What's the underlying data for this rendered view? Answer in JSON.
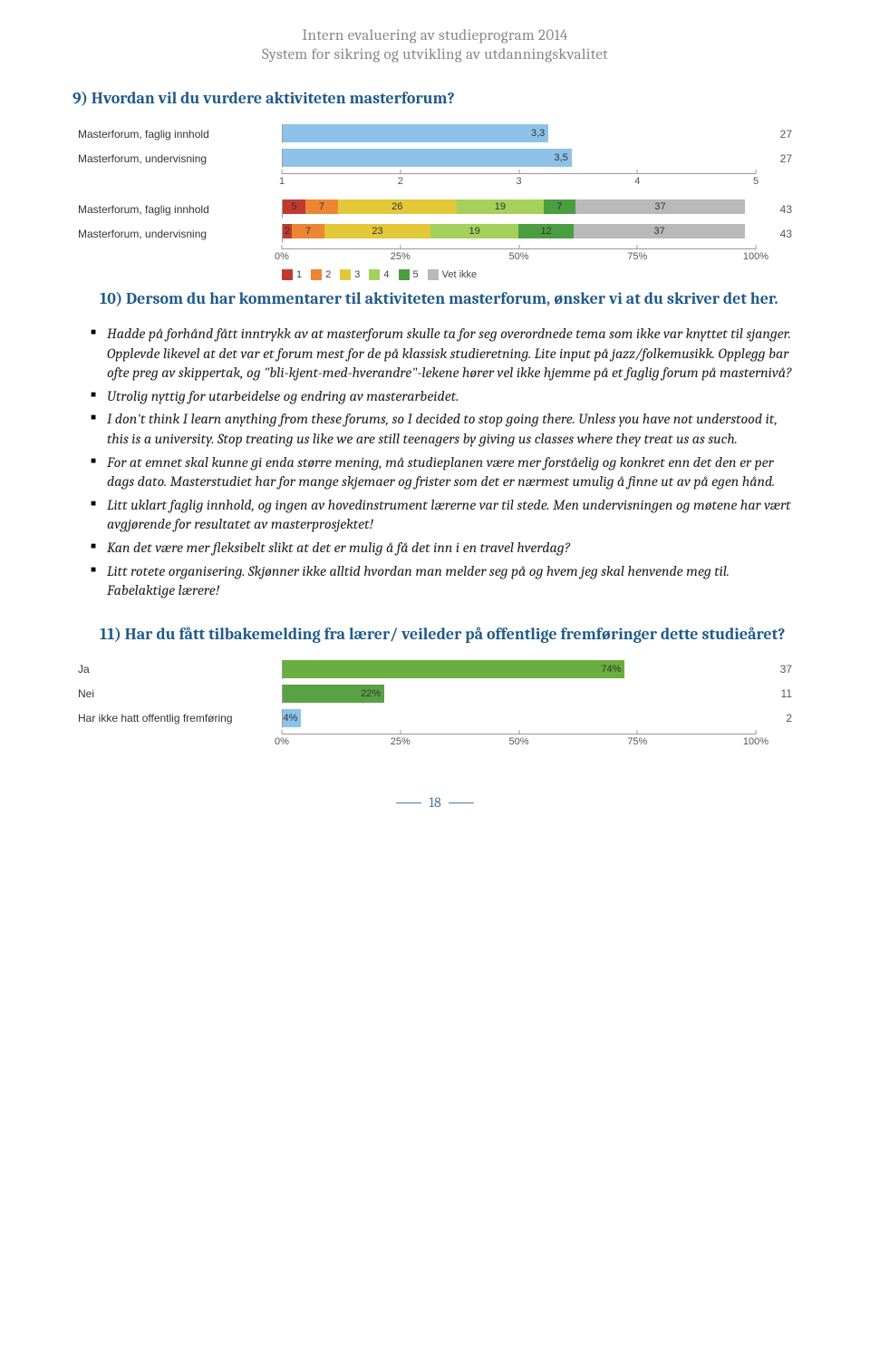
{
  "header": {
    "line1": "Intern evaluering av studieprogram 2014",
    "line2": "System for sikring og utvikling av utdanningskvalitet"
  },
  "q9": {
    "heading": "9)  Hvordan vil du vurdere aktiviteten masterforum?",
    "avg_chart": {
      "type": "bar",
      "x_min": 1,
      "x_max": 5,
      "bar_color": "#8ec2e8",
      "axis_color": "#999999",
      "label_font_size": 12,
      "rows": [
        {
          "label": "Masterforum, faglig innhold",
          "value": 3.3,
          "text": "3,3",
          "n": 27
        },
        {
          "label": "Masterforum, undervisning",
          "value": 3.5,
          "text": "3,5",
          "n": 27
        }
      ],
      "ticks": [
        "1",
        "2",
        "3",
        "4",
        "5"
      ]
    },
    "stacked_chart": {
      "type": "stacked-bar",
      "x_min": 0,
      "x_max": 100,
      "ticks": [
        "0%",
        "25%",
        "50%",
        "75%",
        "100%"
      ],
      "colors": {
        "1": "#c23a2e",
        "2": "#ec8534",
        "3": "#e2c838",
        "4": "#a4d05b",
        "5": "#4a9e3f",
        "vetikke": "#b9b9b9"
      },
      "legend": [
        {
          "key": "1",
          "label": "1"
        },
        {
          "key": "2",
          "label": "2"
        },
        {
          "key": "3",
          "label": "3"
        },
        {
          "key": "4",
          "label": "4"
        },
        {
          "key": "5",
          "label": "5"
        },
        {
          "key": "vetikke",
          "label": "Vet ikke"
        }
      ],
      "rows": [
        {
          "label": "Masterforum, faglig innhold",
          "n": 43,
          "segments": [
            {
              "key": "1",
              "pct": 5,
              "text": "5"
            },
            {
              "key": "2",
              "pct": 7,
              "text": "7"
            },
            {
              "key": "3",
              "pct": 26,
              "text": "26"
            },
            {
              "key": "4",
              "pct": 19,
              "text": "19"
            },
            {
              "key": "5",
              "pct": 7,
              "text": "7"
            },
            {
              "key": "vetikke",
              "pct": 37,
              "text": "37"
            }
          ]
        },
        {
          "label": "Masterforum, undervisning",
          "n": 43,
          "segments": [
            {
              "key": "1",
              "pct": 2,
              "text": "2"
            },
            {
              "key": "2",
              "pct": 7,
              "text": "7"
            },
            {
              "key": "3",
              "pct": 23,
              "text": "23"
            },
            {
              "key": "4",
              "pct": 19,
              "text": "19"
            },
            {
              "key": "5",
              "pct": 12,
              "text": "12"
            },
            {
              "key": "vetikke",
              "pct": 37,
              "text": "37"
            }
          ]
        }
      ]
    }
  },
  "q10": {
    "heading": "10) Dersom du har kommentarer til aktiviteten masterforum, ønsker vi at du skriver det her.",
    "comments": [
      "Hadde på forhånd fått inntrykk av at masterforum skulle ta for seg overordnede tema som ikke var knyttet til sjanger. Opplevde likevel at det var et forum mest for de på klassisk studieretning. Lite input på jazz/folkemusikk. Opplegg bar ofte preg av skippertak, og \"bli-kjent-med-hverandre\"-lekene hører vel ikke hjemme på et faglig forum på masternivå?",
      "Utrolig nyttig for utarbeidelse og endring av masterarbeidet.",
      "I don't think I learn anything from these forums, so I decided to stop going there. Unless you have not understood it, this is a university. Stop treating us like we are still teenagers by giving us classes where they treat us as such.",
      "For at emnet skal kunne gi enda større mening, må studieplanen være mer forståelig og konkret enn det den er per dags dato. Masterstudiet har for mange skjemaer og frister som det er nærmest umulig å finne ut av på egen hånd.",
      "Litt uklart faglig innhold, og ingen av hovedinstrument lærerne var til stede. Men undervisningen og møtene har vært avgjørende for resultatet av masterprosjektet!",
      "Kan det være mer fleksibelt slikt at det er mulig å få det inn i en travel hverdag?",
      "Litt rotete organisering. Skjønner ikke alltid hvordan man melder seg på og hvem jeg skal henvende meg til. Fabelaktige lærere!"
    ]
  },
  "q11": {
    "heading": "11) Har du fått tilbakemelding fra lærer/ veileder på offentlige fremføringer dette studieåret?",
    "bar_chart": {
      "type": "bar",
      "x_min": 0,
      "x_max": 100,
      "ticks": [
        "0%",
        "25%",
        "50%",
        "75%",
        "100%"
      ],
      "rows": [
        {
          "label": "Ja",
          "pct": 74,
          "text": "74%",
          "color": "#6aae3f",
          "n": 37
        },
        {
          "label": "Nei",
          "pct": 22,
          "text": "22%",
          "color": "#5aa146",
          "n": 11
        },
        {
          "label": "Har ikke hatt offentlig fremføring",
          "pct": 4,
          "text": "4%",
          "color": "#8cc4e8",
          "n": 2
        }
      ]
    }
  },
  "page_number": "18"
}
